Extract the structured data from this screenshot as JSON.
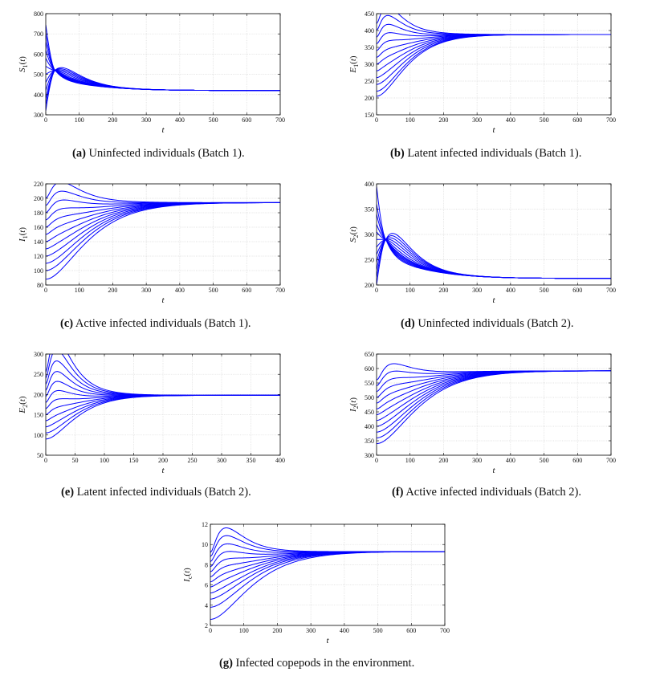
{
  "panels": [
    {
      "id": "a",
      "label": "(a)",
      "caption": "Uninfected individuals (Batch 1).",
      "ylabel": "S_1(t)",
      "xlabel": "t",
      "xlim": [
        0,
        700
      ],
      "ylim": [
        300,
        800
      ],
      "xticks": [
        0,
        100,
        200,
        300,
        400,
        500,
        600,
        700
      ],
      "yticks": [
        300,
        400,
        500,
        600,
        700,
        800
      ],
      "start": [
        320,
        350,
        380,
        420,
        460,
        500,
        540,
        580,
        620,
        660,
        700,
        745
      ],
      "end": 420,
      "kind": "S"
    },
    {
      "id": "b",
      "label": "(b)",
      "caption": "Latent infected individuals (Batch 1).",
      "ylabel": "E_1(t)",
      "xlabel": "t",
      "xlim": [
        0,
        700
      ],
      "ylim": [
        150,
        450
      ],
      "xticks": [
        0,
        100,
        200,
        300,
        400,
        500,
        600,
        700
      ],
      "yticks": [
        150,
        200,
        250,
        300,
        350,
        400,
        450
      ],
      "start": [
        205,
        220,
        240,
        260,
        280,
        300,
        320,
        340,
        360,
        380,
        400,
        420
      ],
      "end": 388,
      "kind": "E"
    },
    {
      "id": "c",
      "label": "(c)",
      "caption": "Active infected individuals (Batch 1).",
      "ylabel": "I_1(t)",
      "xlabel": "t",
      "xlim": [
        0,
        700
      ],
      "ylim": [
        80,
        220
      ],
      "xticks": [
        0,
        100,
        200,
        300,
        400,
        500,
        600,
        700
      ],
      "yticks": [
        80,
        100,
        120,
        140,
        160,
        180,
        200,
        220
      ],
      "start": [
        88,
        100,
        110,
        120,
        130,
        140,
        150,
        160,
        170,
        180,
        190,
        200
      ],
      "end": 194,
      "kind": "I"
    },
    {
      "id": "d",
      "label": "(d)",
      "caption": "Uninfected individuals (Batch 2).",
      "ylabel": "S_2(t)",
      "xlabel": "t",
      "xlim": [
        0,
        700
      ],
      "ylim": [
        200,
        400
      ],
      "xticks": [
        0,
        100,
        200,
        300,
        400,
        500,
        600,
        700
      ],
      "yticks": [
        200,
        250,
        300,
        350,
        400
      ],
      "start": [
        200,
        215,
        230,
        245,
        260,
        275,
        290,
        305,
        320,
        340,
        360,
        395
      ],
      "end": 213,
      "kind": "S"
    },
    {
      "id": "e",
      "label": "(e)",
      "caption": "Latent infected individuals (Batch 2).",
      "ylabel": "E_2(t)",
      "xlabel": "t",
      "xlim": [
        0,
        400
      ],
      "ylim": [
        50,
        300
      ],
      "xticks": [
        0,
        50,
        100,
        150,
        200,
        250,
        300,
        350,
        400
      ],
      "yticks": [
        50,
        100,
        150,
        200,
        250,
        300
      ],
      "start": [
        90,
        105,
        120,
        135,
        150,
        165,
        180,
        195,
        210,
        225,
        240,
        255
      ],
      "end": 198,
      "kind": "E"
    },
    {
      "id": "f",
      "label": "(f)",
      "caption": "Active infected individuals (Batch 2).",
      "ylabel": "I_2(t)",
      "xlabel": "t",
      "xlim": [
        0,
        700
      ],
      "ylim": [
        300,
        650
      ],
      "xticks": [
        0,
        100,
        200,
        300,
        400,
        500,
        600,
        700
      ],
      "yticks": [
        300,
        350,
        400,
        450,
        500,
        550,
        600,
        650
      ],
      "start": [
        340,
        360,
        380,
        400,
        420,
        440,
        460,
        480,
        500,
        520,
        540,
        560
      ],
      "end": 592,
      "kind": "I"
    },
    {
      "id": "g",
      "label": "(g)",
      "caption": "Infected copepods in the environment.",
      "ylabel": "I_c(t)",
      "xlabel": "t",
      "xlim": [
        0,
        700
      ],
      "ylim": [
        2,
        12
      ],
      "xticks": [
        0,
        100,
        200,
        300,
        400,
        500,
        600,
        700
      ],
      "yticks": [
        2,
        4,
        6,
        8,
        10,
        12
      ],
      "start": [
        2.6,
        3.8,
        4.6,
        5.2,
        5.8,
        6.3,
        6.8,
        7.3,
        7.8,
        8.3,
        8.8,
        9.2
      ],
      "end": 9.3,
      "kind": "I"
    }
  ],
  "chart_data": [
    {
      "type": "line",
      "title": "(a) Uninfected individuals (Batch 1).",
      "xlabel": "t",
      "ylabel": "S_1(t)",
      "xlim": [
        0,
        700
      ],
      "ylim": [
        300,
        800
      ],
      "series_note": "12 trajectories from different initial values converging to equilibrium",
      "initial_values": [
        320,
        350,
        380,
        420,
        460,
        500,
        540,
        580,
        620,
        660,
        700,
        745
      ],
      "equilibrium": 420
    },
    {
      "type": "line",
      "title": "(b) Latent infected individuals (Batch 1).",
      "xlabel": "t",
      "ylabel": "E_1(t)",
      "xlim": [
        0,
        700
      ],
      "ylim": [
        150,
        450
      ],
      "initial_values": [
        205,
        220,
        240,
        260,
        280,
        300,
        320,
        340,
        360,
        380,
        400,
        420
      ],
      "equilibrium": 388
    },
    {
      "type": "line",
      "title": "(c) Active infected individuals (Batch 1).",
      "xlabel": "t",
      "ylabel": "I_1(t)",
      "xlim": [
        0,
        700
      ],
      "ylim": [
        80,
        220
      ],
      "initial_values": [
        88,
        100,
        110,
        120,
        130,
        140,
        150,
        160,
        170,
        180,
        190,
        200
      ],
      "equilibrium": 194
    },
    {
      "type": "line",
      "title": "(d) Uninfected individuals (Batch 2).",
      "xlabel": "t",
      "ylabel": "S_2(t)",
      "xlim": [
        0,
        700
      ],
      "ylim": [
        200,
        400
      ],
      "initial_values": [
        200,
        215,
        230,
        245,
        260,
        275,
        290,
        305,
        320,
        340,
        360,
        395
      ],
      "equilibrium": 213
    },
    {
      "type": "line",
      "title": "(e) Latent infected individuals (Batch 2).",
      "xlabel": "t",
      "ylabel": "E_2(t)",
      "xlim": [
        0,
        400
      ],
      "ylim": [
        50,
        300
      ],
      "initial_values": [
        90,
        105,
        120,
        135,
        150,
        165,
        180,
        195,
        210,
        225,
        240,
        255
      ],
      "equilibrium": 198
    },
    {
      "type": "line",
      "title": "(f) Active infected individuals (Batch 2).",
      "xlabel": "t",
      "ylabel": "I_2(t)",
      "xlim": [
        0,
        700
      ],
      "ylim": [
        300,
        650
      ],
      "initial_values": [
        340,
        360,
        380,
        400,
        420,
        440,
        460,
        480,
        500,
        520,
        540,
        560
      ],
      "equilibrium": 592
    },
    {
      "type": "line",
      "title": "(g) Infected copepods in the environment.",
      "xlabel": "t",
      "ylabel": "I_c(t)",
      "xlim": [
        0,
        700
      ],
      "ylim": [
        2,
        12
      ],
      "initial_values": [
        2.6,
        3.8,
        4.6,
        5.2,
        5.8,
        6.3,
        6.8,
        7.3,
        7.8,
        8.3,
        8.8,
        9.2
      ],
      "equilibrium": 9.3
    }
  ],
  "style": {
    "line_color": "#0000ff",
    "grid_color": "#d9d9d9",
    "axis_color": "#000000"
  }
}
